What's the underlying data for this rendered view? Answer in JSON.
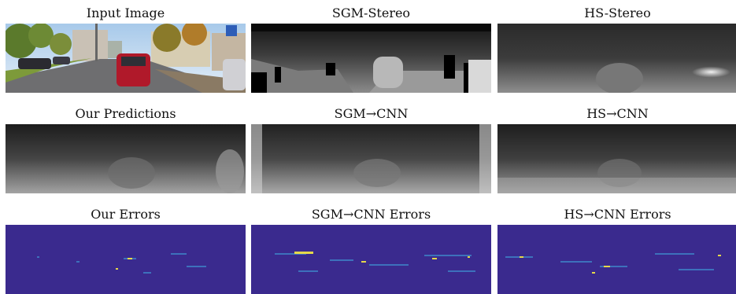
{
  "figure": {
    "captions": [
      [
        "Input Image",
        "SGM-Stereo",
        "HS-Stereo"
      ],
      [
        "Our Predictions",
        "SGM→CNN",
        "HS→CNN"
      ],
      [
        "Our Errors",
        "SGM→CNN Errors",
        "HS→CNN Errors"
      ]
    ]
  },
  "colors": {
    "error_background": "#3a2a8e",
    "error_light": "#3f8fd0",
    "error_hot": "#e5d84a",
    "sky": "#cfe3f2",
    "car_red": "#b0192a"
  }
}
